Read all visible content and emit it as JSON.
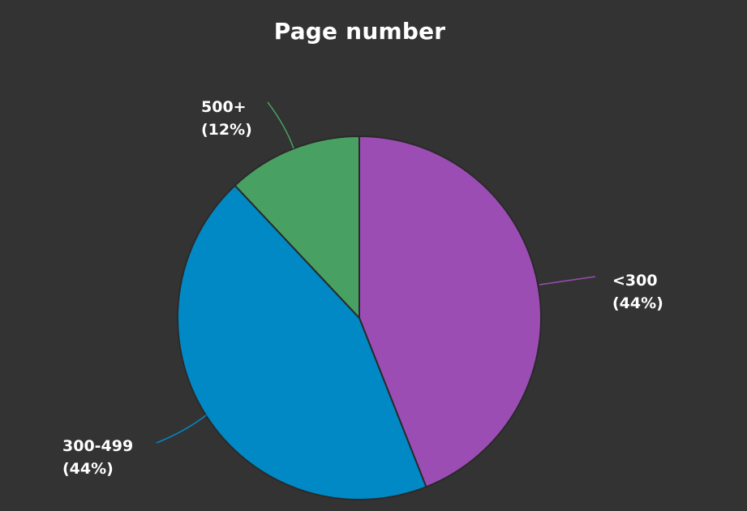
{
  "chart_data": {
    "type": "pie",
    "title": "Page number",
    "slices": [
      {
        "label": "<300",
        "value": 44,
        "percent_label": "(44%)",
        "color": "#9b4db3"
      },
      {
        "label": "300-499",
        "value": 44,
        "percent_label": "(44%)",
        "color": "#0089c4"
      },
      {
        "label": "500+",
        "value": 12,
        "percent_label": "(12%)",
        "color": "#48a062"
      }
    ],
    "start_angle_deg": 0,
    "direction": "clockwise",
    "legend": "none",
    "background": "#333333",
    "slice_border_color": "#2a2a2a"
  }
}
